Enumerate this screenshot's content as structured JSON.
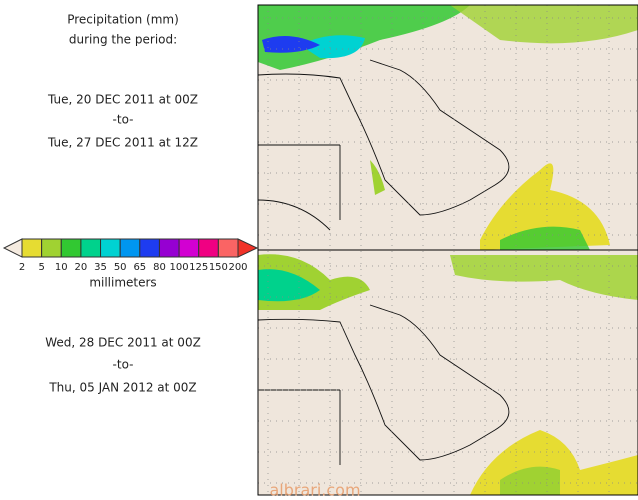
{
  "header": {
    "title": "Precipitation (mm)",
    "subtitle": "during the period:"
  },
  "periods": [
    {
      "start": "Tue, 20 DEC 2011 at 00Z",
      "separator": "-to-",
      "end": "Tue, 27 DEC 2011 at 12Z"
    },
    {
      "start": "Wed, 28 DEC 2011 at 00Z",
      "separator": "-to-",
      "end": "Thu, 05 JAN 2012 at 00Z"
    }
  ],
  "legend": {
    "ticks": [
      2,
      5,
      10,
      20,
      35,
      50,
      65,
      80,
      100,
      125,
      150,
      200
    ],
    "colors": [
      "#e6dc32",
      "#a0d232",
      "#32c832",
      "#00d28c",
      "#00d2d2",
      "#0096f0",
      "#1e3cf0",
      "#9600d2",
      "#d200d2",
      "#f00082",
      "#fa6464"
    ],
    "under_color": "#f5ebe0",
    "over_color": "#f03228",
    "unit": "millimeters"
  },
  "watermark": "albrari.com"
}
